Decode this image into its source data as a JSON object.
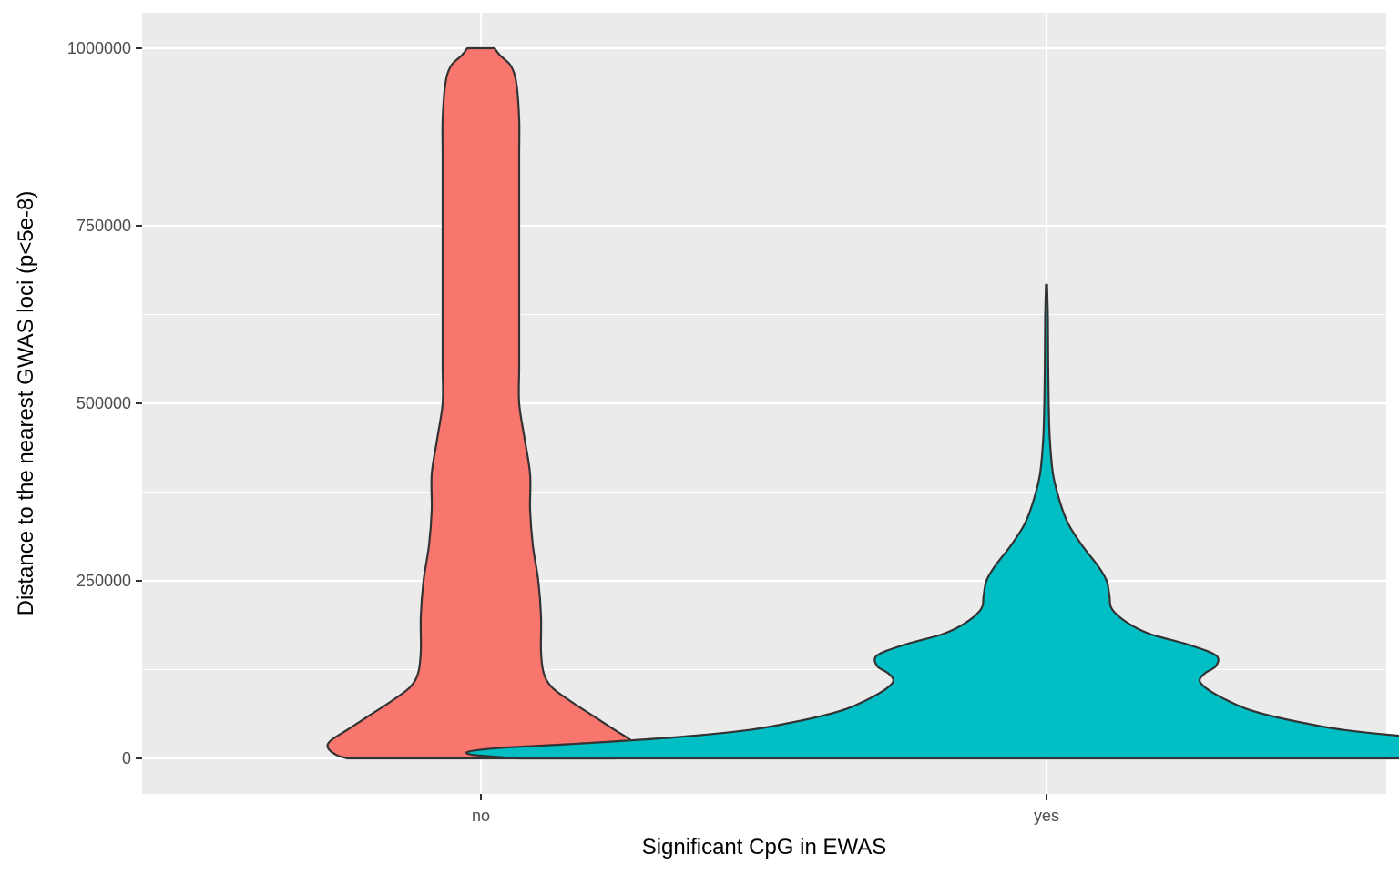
{
  "chart_data": {
    "type": "violin",
    "title": "",
    "xlabel": "Significant CpG in EWAS",
    "ylabel": "Distance to the nearest GWAS loci (p<5e-8)",
    "categories": [
      "no",
      "yes"
    ],
    "ylim": [
      -50000,
      1000000
    ],
    "y_ticks": [
      0,
      250000,
      500000,
      750000,
      1000000
    ],
    "y_tick_labels": [
      "0",
      "250000",
      "500000",
      "750000",
      "1000000"
    ],
    "grid": true,
    "legend": "none",
    "series": [
      {
        "category": "no",
        "color": "#F8766D",
        "y_max": 1000000,
        "density_profile": [
          [
            0,
            0.49
          ],
          [
            5000,
            0.53
          ],
          [
            15000,
            0.56
          ],
          [
            25000,
            0.55
          ],
          [
            40000,
            0.49
          ],
          [
            60000,
            0.41
          ],
          [
            80000,
            0.33
          ],
          [
            100000,
            0.26
          ],
          [
            120000,
            0.23
          ],
          [
            150000,
            0.22
          ],
          [
            200000,
            0.22
          ],
          [
            250000,
            0.21
          ],
          [
            300000,
            0.19
          ],
          [
            350000,
            0.18
          ],
          [
            400000,
            0.18
          ],
          [
            450000,
            0.16
          ],
          [
            500000,
            0.14
          ],
          [
            550000,
            0.14
          ],
          [
            600000,
            0.14
          ],
          [
            650000,
            0.14
          ],
          [
            700000,
            0.14
          ],
          [
            750000,
            0.14
          ],
          [
            800000,
            0.14
          ],
          [
            850000,
            0.14
          ],
          [
            900000,
            0.14
          ],
          [
            950000,
            0.13
          ],
          [
            975000,
            0.11
          ],
          [
            990000,
            0.07
          ],
          [
            1000000,
            0.05
          ]
        ]
      },
      {
        "category": "yes",
        "color": "#00BFC4",
        "y_max": 667000,
        "density_profile": [
          [
            0,
            1.93
          ],
          [
            5000,
            2.1
          ],
          [
            10000,
            2.11
          ],
          [
            15000,
            1.99
          ],
          [
            20000,
            1.75
          ],
          [
            30000,
            1.35
          ],
          [
            40000,
            1.09
          ],
          [
            50000,
            0.94
          ],
          [
            60000,
            0.82
          ],
          [
            70000,
            0.73
          ],
          [
            80000,
            0.67
          ],
          [
            90000,
            0.62
          ],
          [
            100000,
            0.58
          ],
          [
            110000,
            0.56
          ],
          [
            120000,
            0.58
          ],
          [
            130000,
            0.62
          ],
          [
            145000,
            0.62
          ],
          [
            160000,
            0.52
          ],
          [
            175000,
            0.38
          ],
          [
            190000,
            0.3
          ],
          [
            210000,
            0.24
          ],
          [
            230000,
            0.23
          ],
          [
            250000,
            0.22
          ],
          [
            270000,
            0.19
          ],
          [
            300000,
            0.13
          ],
          [
            330000,
            0.08
          ],
          [
            360000,
            0.05
          ],
          [
            400000,
            0.024
          ],
          [
            450000,
            0.012
          ],
          [
            500000,
            0.008
          ],
          [
            560000,
            0.006
          ],
          [
            620000,
            0.005
          ],
          [
            667000,
            0.002
          ]
        ]
      }
    ]
  },
  "style": {
    "panel_background": "#EBEBEB",
    "grid_color": "#FFFFFF",
    "outline_color": "#333333",
    "tick_color": "#333333"
  }
}
